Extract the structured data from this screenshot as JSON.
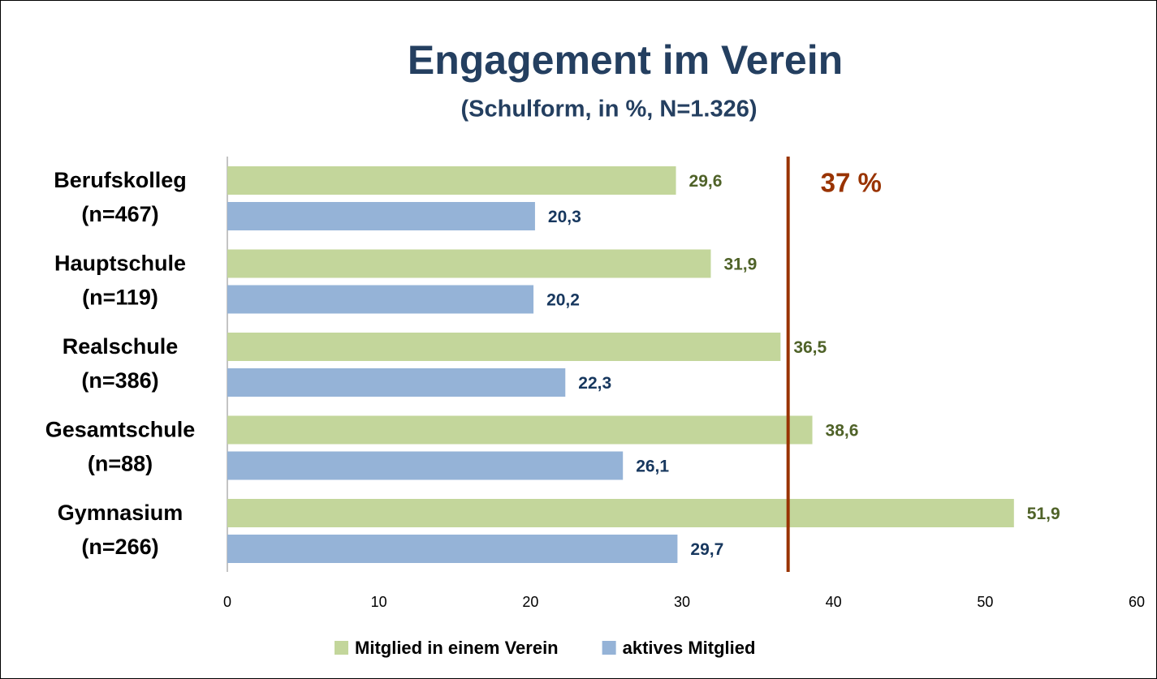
{
  "chart_data": {
    "type": "bar",
    "orientation": "horizontal",
    "title": "Engagement im Verein",
    "subtitle": "(Schulform, in %, N=1.326)",
    "categories": [
      [
        "Berufskolleg",
        "(n=467)"
      ],
      [
        "Hauptschule",
        "(n=119)"
      ],
      [
        "Realschule",
        "(n=386)"
      ],
      [
        "Gesamtschule",
        "(n=88)"
      ],
      [
        "Gymnasium",
        "(n=266)"
      ]
    ],
    "series": [
      {
        "name": "Mitglied in einem Verein",
        "color": "#c3d69b",
        "label_color": "#4f6228",
        "values": [
          29.6,
          31.9,
          36.5,
          38.6,
          51.9
        ],
        "value_labels": [
          "29,6",
          "31,9",
          "36,5",
          "38,6",
          "51,9"
        ]
      },
      {
        "name": "aktives Mitglied",
        "color": "#95b3d7",
        "label_color": "#17375e",
        "values": [
          20.3,
          20.2,
          22.3,
          26.1,
          29.7
        ],
        "value_labels": [
          "20,3",
          "20,2",
          "22,3",
          "26,1",
          "29,7"
        ]
      }
    ],
    "xlim": [
      0,
      60
    ],
    "xticks": [
      0,
      10,
      20,
      30,
      40,
      50,
      60
    ],
    "reference_line": {
      "value": 37,
      "label": "37 %",
      "color": "#993300"
    },
    "legend": "bottom",
    "grid": false
  }
}
